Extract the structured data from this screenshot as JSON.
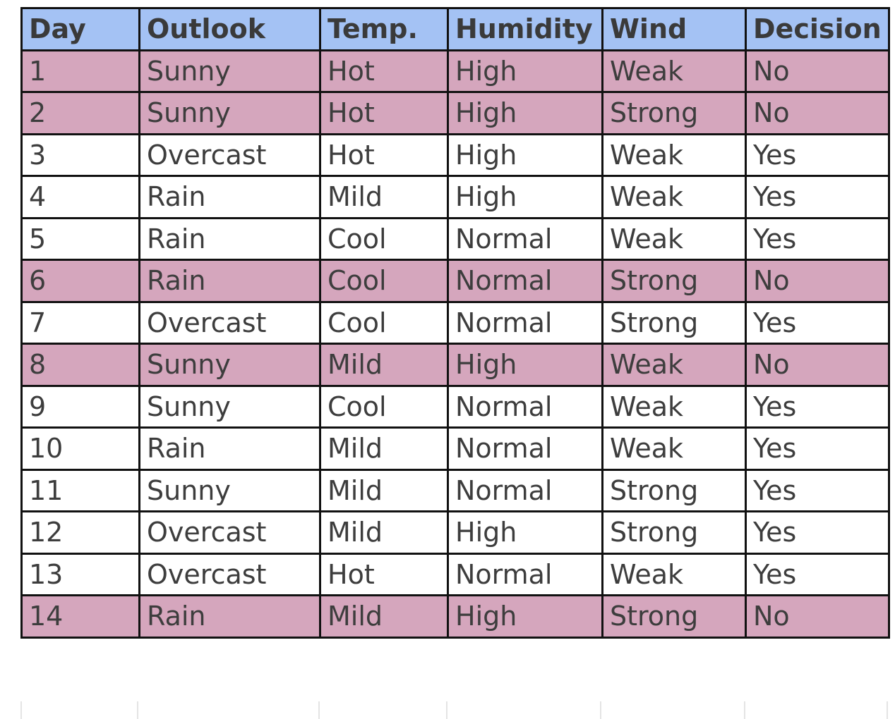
{
  "table": {
    "columns": [
      "Day",
      "Outlook",
      "Temp.",
      "Humidity",
      "Wind",
      "Decision"
    ],
    "rows": [
      [
        "1",
        "Sunny",
        "Hot",
        "High",
        "Weak",
        "No"
      ],
      [
        "2",
        "Sunny",
        "Hot",
        "High",
        "Strong",
        "No"
      ],
      [
        "3",
        "Overcast",
        "Hot",
        "High",
        "Weak",
        "Yes"
      ],
      [
        "4",
        "Rain",
        "Mild",
        "High",
        "Weak",
        "Yes"
      ],
      [
        "5",
        "Rain",
        "Cool",
        "Normal",
        "Weak",
        "Yes"
      ],
      [
        "6",
        "Rain",
        "Cool",
        "Normal",
        "Strong",
        "No"
      ],
      [
        "7",
        "Overcast",
        "Cool",
        "Normal",
        "Strong",
        "Yes"
      ],
      [
        "8",
        "Sunny",
        "Mild",
        "High",
        "Weak",
        "No"
      ],
      [
        "9",
        "Sunny",
        "Cool",
        "Normal",
        "Weak",
        "Yes"
      ],
      [
        "10",
        "Rain",
        "Mild",
        "Normal",
        "Weak",
        "Yes"
      ],
      [
        "11",
        "Sunny",
        "Mild",
        "Normal",
        "Strong",
        "Yes"
      ],
      [
        "12",
        "Overcast",
        "Mild",
        "High",
        "Strong",
        "Yes"
      ],
      [
        "13",
        "Overcast",
        "Hot",
        "Normal",
        "Weak",
        "Yes"
      ],
      [
        "14",
        "Rain",
        "Mild",
        "High",
        "Strong",
        "No"
      ]
    ]
  },
  "colors": {
    "header_bg": "#a4c2f4",
    "decision_no_bg": "#d5a6bd",
    "decision_yes_bg": "#ffffff",
    "border": "#111111",
    "text": "#3d3d3d"
  }
}
